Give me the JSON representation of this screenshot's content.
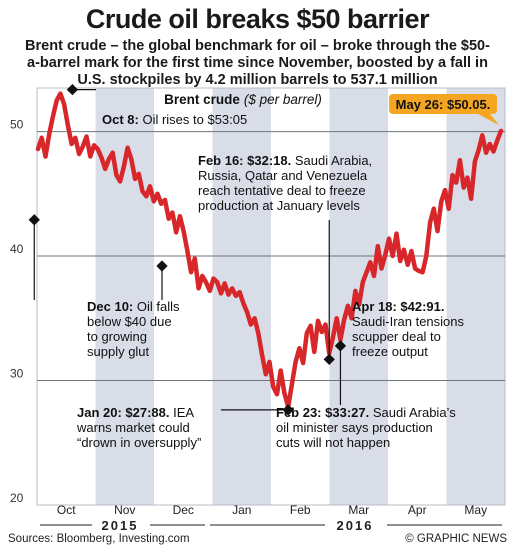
{
  "title": "Crude oil breaks $50 barrier",
  "subtitle": "Brent crude – the global benchmark for oil – broke through the $50-a-barrel mark for the first time since November, boosted by a fall in U.S. stockpiles by 4.2 million barrels to 537.1 million",
  "chart_data": {
    "type": "line",
    "title": "Brent crude",
    "unit_label": "($ per barrel)",
    "ylim": [
      20,
      53.5
    ],
    "y_ticks": [
      20,
      30,
      40,
      50
    ],
    "months": [
      "Oct",
      "Nov",
      "Dec",
      "Jan",
      "Feb",
      "Mar",
      "Apr",
      "May"
    ],
    "years": [
      "2015",
      "2016"
    ],
    "grid": true,
    "series": [
      {
        "values": [
          48.6,
          49.5,
          48.0,
          49.8,
          51.2,
          52.5,
          53.05,
          52.2,
          50.5,
          49.0,
          49.5,
          48.2,
          48.8,
          49.6,
          48.0,
          48.9,
          48.6,
          47.9,
          47.0,
          47.8,
          48.3,
          46.5,
          46.0,
          47.2,
          48.7,
          47.8,
          46.2,
          46.6,
          45.2,
          44.8,
          45.6,
          44.4,
          45.0,
          44.2,
          44.5,
          43.0,
          43.5,
          41.9,
          43.2,
          42.0,
          40.4,
          38.7,
          39.8,
          37.4,
          38.4,
          37.9,
          37.2,
          38.2,
          37.9,
          37.0,
          37.8,
          36.9,
          37.4,
          36.8,
          37.1,
          36.2,
          35.5,
          34.5,
          35.0,
          33.8,
          32.1,
          30.5,
          31.5,
          29.5,
          28.9,
          30.8,
          29.0,
          27.88,
          29.7,
          31.5,
          32.6,
          31.4,
          33.8,
          34.4,
          32.3,
          34.8,
          33.9,
          34.5,
          32.18,
          33.5,
          35.0,
          33.27,
          34.9,
          36.0,
          35.0,
          37.2,
          36.1,
          37.9,
          38.7,
          39.5,
          38.4,
          40.8,
          39.0,
          40.1,
          41.4,
          40.0,
          41.8,
          39.6,
          40.5,
          39.3,
          40.4,
          39.0,
          38.8,
          38.7,
          40.0,
          42.7,
          43.8,
          42.0,
          44.4,
          45.3,
          43.8,
          46.5,
          45.9,
          47.7,
          45.5,
          46.3,
          44.6,
          47.6,
          48.5,
          49.7,
          48.3,
          49.0,
          48.4,
          49.3,
          50.05
        ]
      }
    ],
    "annotations": [
      {
        "id": "oct8",
        "date_bold": "Oct 8:",
        "text": "Oil rises to $53:05",
        "value": 53.05
      },
      {
        "id": "dec10",
        "date_bold": "Dec 10:",
        "text": "Oil falls below $40 due to growing supply glut",
        "value": 40.0
      },
      {
        "id": "jan20",
        "date_bold": "Jan 20: $27:88.",
        "text": "IEA warns market could “drown in oversupply”",
        "value": 27.88
      },
      {
        "id": "feb16",
        "date_bold": "Feb 16: $32:18.",
        "text": "Saudi Arabia, Russia, Qatar and Venezuela reach tentative deal to freeze production at January levels",
        "value": 32.18
      },
      {
        "id": "feb23",
        "date_bold": "Feb 23: $33:27.",
        "text": "Saudi Arabia’s oil minister says production cuts will not happen",
        "value": 33.27
      },
      {
        "id": "apr18",
        "date_bold": "Apr 18: $42:91.",
        "text": "Saudi-Iran tensions scupper deal to freeze output",
        "value": 42.91
      },
      {
        "id": "may26",
        "date_bold": "May 26: $50.05.",
        "text": "",
        "value": 50.05
      }
    ]
  },
  "colors": {
    "line": "#d7272a",
    "band": "#d8dde8",
    "grid": "#6e747c",
    "highlight": "#f4a622"
  },
  "footer": {
    "sources": "Sources: Bloomberg, Investing.com",
    "credit": "© GRAPHIC NEWS"
  }
}
